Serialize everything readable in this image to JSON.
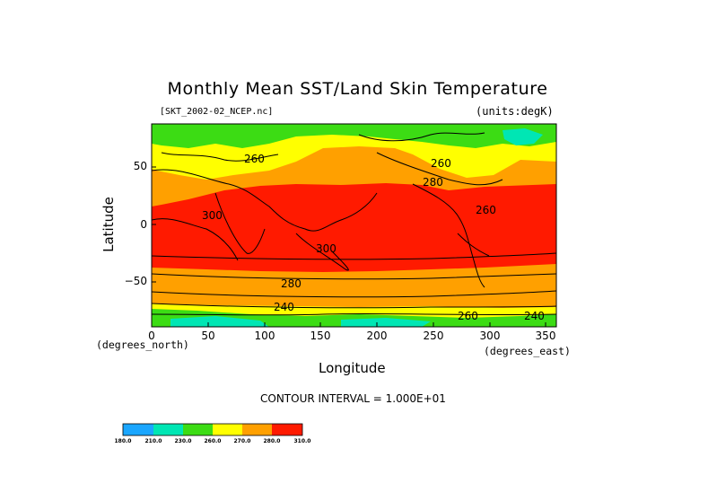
{
  "title": "Monthly Mean SST/Land Skin Temperature",
  "file_label": "[SKT_2002-02_NCEP.nc]",
  "units_label": "(units:degK)",
  "x_axis": {
    "label": "Longitude",
    "unit": "(degrees_east)",
    "ticks": [
      "0",
      "50",
      "100",
      "150",
      "200",
      "250",
      "300",
      "350"
    ]
  },
  "y_axis": {
    "label": "Latitude",
    "unit": "(degrees_north)",
    "ticks": [
      "50",
      "0",
      "−50"
    ]
  },
  "contour_interval": "CONTOUR INTERVAL = 1.000E+01",
  "contour_labels": [
    "260",
    "280",
    "300",
    "300",
    "280",
    "240",
    "260",
    "240",
    "260",
    "260"
  ],
  "colorbar": {
    "labels": [
      "180.0",
      "210.0",
      "230.0",
      "260.0",
      "270.0",
      "280.0",
      "310.0"
    ],
    "colors": [
      "#1aa6ff",
      "#00e6b4",
      "#3cdc14",
      "#ffff00",
      "#ffa000",
      "#ff1a00"
    ]
  },
  "chart_data": {
    "type": "heatmap",
    "title": "Monthly Mean SST/Land Skin Temperature",
    "xlabel": "Longitude",
    "ylabel": "Latitude",
    "xlim": [
      0,
      360
    ],
    "ylim": [
      -90,
      90
    ],
    "units": "degK",
    "zonal_bands": [
      {
        "lat": [
          70,
          90
        ],
        "temp_range": [
          230,
          260
        ]
      },
      {
        "lat": [
          40,
          70
        ],
        "temp_range": [
          260,
          280
        ]
      },
      {
        "lat": [
          20,
          40
        ],
        "temp_range": [
          280,
          310
        ]
      },
      {
        "lat": [
          -40,
          20
        ],
        "temp_range": [
          280,
          310
        ]
      },
      {
        "lat": [
          -60,
          -40
        ],
        "temp_range": [
          270,
          280
        ]
      },
      {
        "lat": [
          -70,
          -60
        ],
        "temp_range": [
          260,
          270
        ]
      },
      {
        "lat": [
          -90,
          -70
        ],
        "temp_range": [
          230,
          260
        ]
      }
    ]
  }
}
